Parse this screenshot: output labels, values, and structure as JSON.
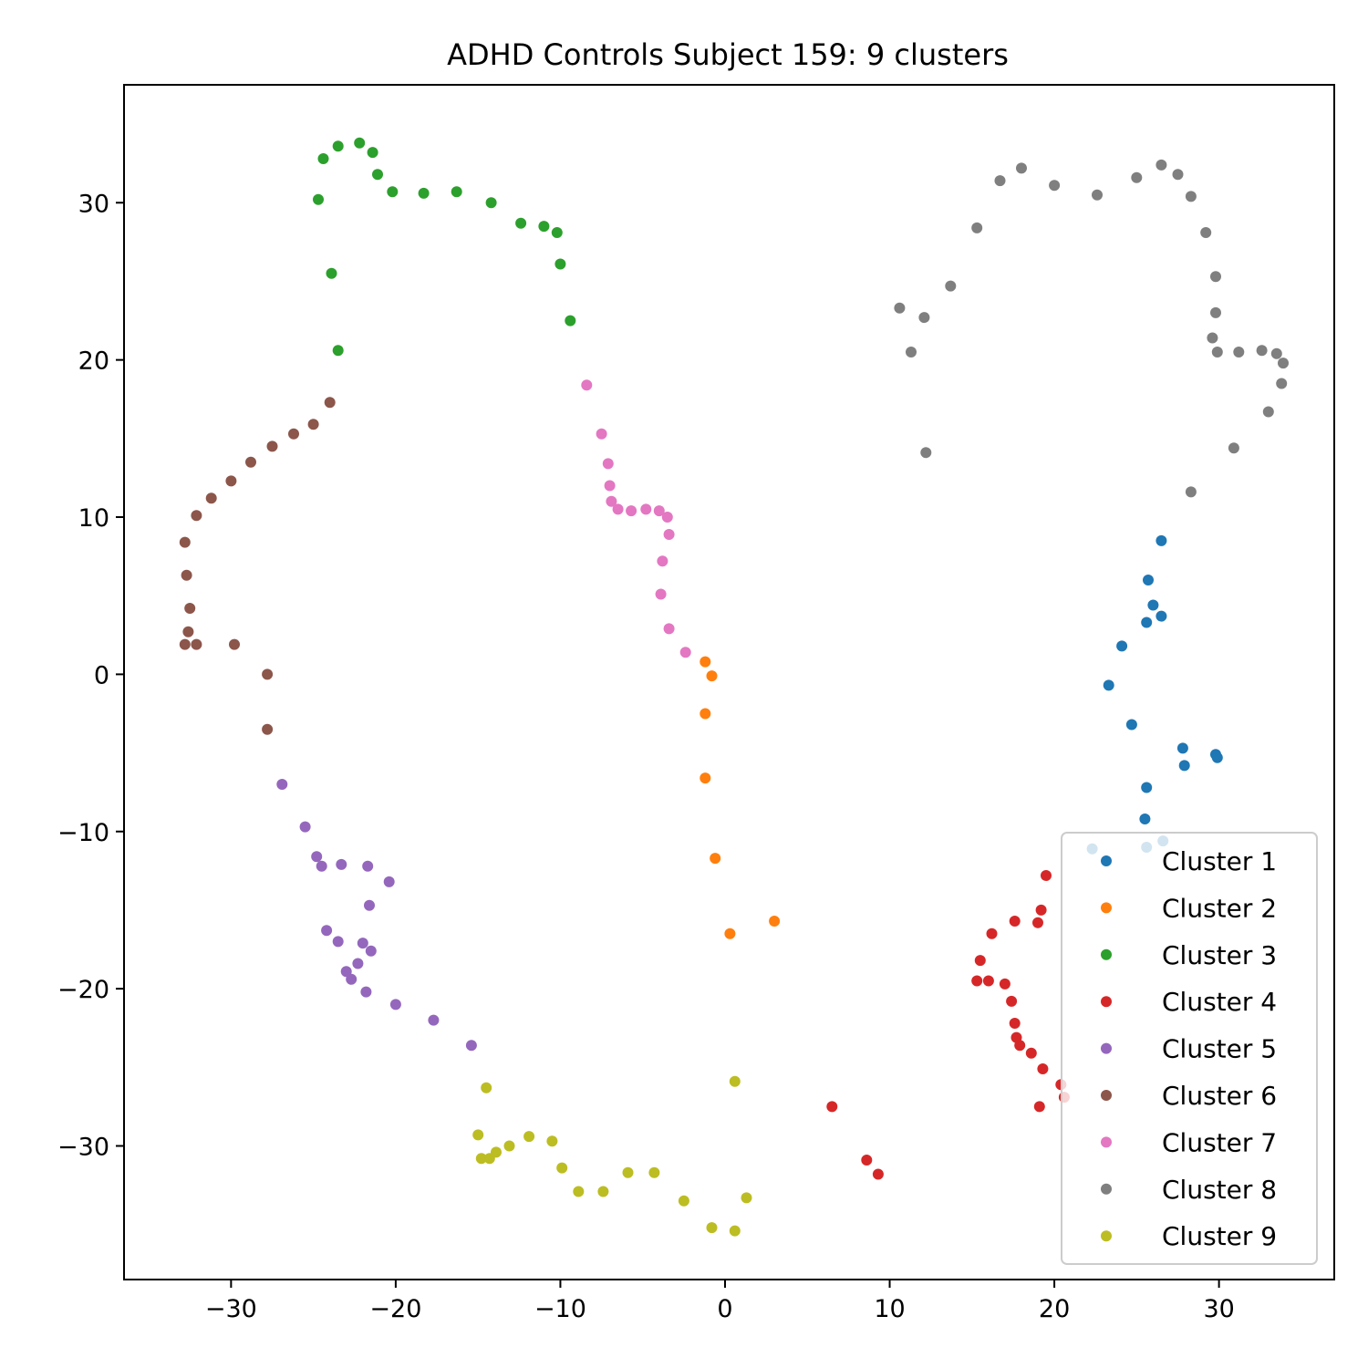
{
  "chart_data": {
    "type": "scatter",
    "title": "ADHD Controls Subject 159: 9 clusters",
    "xlabel": "",
    "ylabel": "",
    "xlim": [
      -36.5,
      37.0
    ],
    "ylim": [
      -38.5,
      37.5
    ],
    "xticks": [
      -30,
      -20,
      -10,
      0,
      10,
      20,
      30
    ],
    "yticks": [
      -30,
      -20,
      -10,
      0,
      10,
      20,
      30
    ],
    "grid": false,
    "legend_position": "lower-right",
    "series": [
      {
        "name": "Cluster 1",
        "color": "#1f77b4",
        "points": [
          [
            26.5,
            8.5
          ],
          [
            25.7,
            6.0
          ],
          [
            26.0,
            4.4
          ],
          [
            26.5,
            3.7
          ],
          [
            25.6,
            3.3
          ],
          [
            24.1,
            1.8
          ],
          [
            23.3,
            -0.7
          ],
          [
            24.7,
            -3.2
          ],
          [
            27.8,
            -4.7
          ],
          [
            27.9,
            -5.8
          ],
          [
            29.8,
            -5.1
          ],
          [
            29.9,
            -5.3
          ],
          [
            25.6,
            -7.2
          ],
          [
            25.5,
            -9.2
          ],
          [
            22.3,
            -11.1
          ],
          [
            25.6,
            -11.0
          ],
          [
            26.6,
            -10.6
          ]
        ]
      },
      {
        "name": "Cluster 2",
        "color": "#ff7f0e",
        "points": [
          [
            -1.2,
            0.8
          ],
          [
            -0.8,
            -0.1
          ],
          [
            -1.2,
            -2.5
          ],
          [
            -1.2,
            -6.6
          ],
          [
            -0.6,
            -11.7
          ],
          [
            0.3,
            -16.5
          ],
          [
            3.0,
            -15.7
          ]
        ]
      },
      {
        "name": "Cluster 3",
        "color": "#2ca02c",
        "points": [
          [
            -24.7,
            30.2
          ],
          [
            -24.4,
            32.8
          ],
          [
            -23.5,
            33.6
          ],
          [
            -22.2,
            33.8
          ],
          [
            -21.4,
            33.2
          ],
          [
            -21.1,
            31.8
          ],
          [
            -20.2,
            30.7
          ],
          [
            -18.3,
            30.6
          ],
          [
            -16.3,
            30.7
          ],
          [
            -14.2,
            30.0
          ],
          [
            -12.4,
            28.7
          ],
          [
            -11.0,
            28.5
          ],
          [
            -10.2,
            28.1
          ],
          [
            -10.0,
            26.1
          ],
          [
            -9.4,
            22.5
          ],
          [
            -23.9,
            25.5
          ],
          [
            -23.5,
            20.6
          ]
        ]
      },
      {
        "name": "Cluster 4",
        "color": "#d62728",
        "points": [
          [
            19.5,
            -12.8
          ],
          [
            19.2,
            -15.0
          ],
          [
            19.0,
            -15.8
          ],
          [
            17.6,
            -15.7
          ],
          [
            16.2,
            -16.5
          ],
          [
            15.5,
            -18.2
          ],
          [
            15.3,
            -19.5
          ],
          [
            16.0,
            -19.5
          ],
          [
            17.0,
            -19.7
          ],
          [
            17.4,
            -20.8
          ],
          [
            17.6,
            -22.2
          ],
          [
            17.7,
            -23.1
          ],
          [
            17.9,
            -23.6
          ],
          [
            18.6,
            -24.1
          ],
          [
            19.3,
            -25.1
          ],
          [
            20.4,
            -26.1
          ],
          [
            20.6,
            -26.9
          ],
          [
            19.1,
            -27.5
          ],
          [
            6.5,
            -27.5
          ],
          [
            8.6,
            -30.9
          ],
          [
            9.3,
            -31.8
          ]
        ]
      },
      {
        "name": "Cluster 5",
        "color": "#9467bd",
        "points": [
          [
            -26.9,
            -7.0
          ],
          [
            -25.5,
            -9.7
          ],
          [
            -24.8,
            -11.6
          ],
          [
            -24.5,
            -12.2
          ],
          [
            -23.3,
            -12.1
          ],
          [
            -21.7,
            -12.2
          ],
          [
            -20.4,
            -13.2
          ],
          [
            -21.6,
            -14.7
          ],
          [
            -24.2,
            -16.3
          ],
          [
            -23.5,
            -17.0
          ],
          [
            -22.0,
            -17.1
          ],
          [
            -21.5,
            -17.6
          ],
          [
            -22.3,
            -18.4
          ],
          [
            -23.0,
            -18.9
          ],
          [
            -22.7,
            -19.4
          ],
          [
            -21.8,
            -20.2
          ],
          [
            -20.0,
            -21.0
          ],
          [
            -17.7,
            -22.0
          ],
          [
            -15.4,
            -23.6
          ]
        ]
      },
      {
        "name": "Cluster 6",
        "color": "#8c564b",
        "points": [
          [
            -24.0,
            17.3
          ],
          [
            -25.0,
            15.9
          ],
          [
            -26.2,
            15.3
          ],
          [
            -27.5,
            14.5
          ],
          [
            -28.8,
            13.5
          ],
          [
            -30.0,
            12.3
          ],
          [
            -31.2,
            11.2
          ],
          [
            -32.1,
            10.1
          ],
          [
            -32.8,
            8.4
          ],
          [
            -32.7,
            6.3
          ],
          [
            -32.5,
            4.2
          ],
          [
            -32.6,
            2.7
          ],
          [
            -32.8,
            1.9
          ],
          [
            -32.1,
            1.9
          ],
          [
            -29.8,
            1.9
          ],
          [
            -27.8,
            0.0
          ],
          [
            -27.8,
            -3.5
          ]
        ]
      },
      {
        "name": "Cluster 7",
        "color": "#e377c2",
        "points": [
          [
            -8.4,
            18.4
          ],
          [
            -7.5,
            15.3
          ],
          [
            -7.1,
            13.4
          ],
          [
            -7.0,
            12.0
          ],
          [
            -6.9,
            11.0
          ],
          [
            -6.5,
            10.5
          ],
          [
            -5.7,
            10.4
          ],
          [
            -4.8,
            10.5
          ],
          [
            -4.0,
            10.4
          ],
          [
            -3.5,
            10.0
          ],
          [
            -3.4,
            8.9
          ],
          [
            -3.8,
            7.2
          ],
          [
            -3.9,
            5.1
          ],
          [
            -3.4,
            2.9
          ],
          [
            -2.4,
            1.4
          ]
        ]
      },
      {
        "name": "Cluster 8",
        "color": "#7f7f7f",
        "points": [
          [
            10.6,
            23.3
          ],
          [
            11.3,
            20.5
          ],
          [
            12.1,
            22.7
          ],
          [
            12.2,
            14.1
          ],
          [
            13.7,
            24.7
          ],
          [
            15.3,
            28.4
          ],
          [
            16.7,
            31.4
          ],
          [
            18.0,
            32.2
          ],
          [
            20.0,
            31.1
          ],
          [
            22.6,
            30.5
          ],
          [
            25.0,
            31.6
          ],
          [
            26.5,
            32.4
          ],
          [
            27.5,
            31.8
          ],
          [
            28.3,
            30.4
          ],
          [
            29.2,
            28.1
          ],
          [
            29.8,
            25.3
          ],
          [
            29.8,
            23.0
          ],
          [
            29.6,
            21.4
          ],
          [
            29.9,
            20.5
          ],
          [
            31.2,
            20.5
          ],
          [
            32.6,
            20.6
          ],
          [
            33.5,
            20.4
          ],
          [
            33.9,
            19.8
          ],
          [
            33.8,
            18.5
          ],
          [
            33.0,
            16.7
          ],
          [
            30.9,
            14.4
          ],
          [
            28.3,
            11.6
          ]
        ]
      },
      {
        "name": "Cluster 9",
        "color": "#bcbd22",
        "points": [
          [
            -14.5,
            -26.3
          ],
          [
            -15.0,
            -29.3
          ],
          [
            -14.8,
            -30.8
          ],
          [
            -14.3,
            -30.8
          ],
          [
            -13.9,
            -30.4
          ],
          [
            -13.1,
            -30.0
          ],
          [
            -11.9,
            -29.4
          ],
          [
            -10.5,
            -29.7
          ],
          [
            -9.9,
            -31.4
          ],
          [
            -8.9,
            -32.9
          ],
          [
            -7.4,
            -32.9
          ],
          [
            -5.9,
            -31.7
          ],
          [
            -4.3,
            -31.7
          ],
          [
            -2.5,
            -33.5
          ],
          [
            -0.8,
            -35.2
          ],
          [
            0.6,
            -35.4
          ],
          [
            1.3,
            -33.3
          ],
          [
            0.6,
            -25.9
          ]
        ]
      }
    ]
  }
}
